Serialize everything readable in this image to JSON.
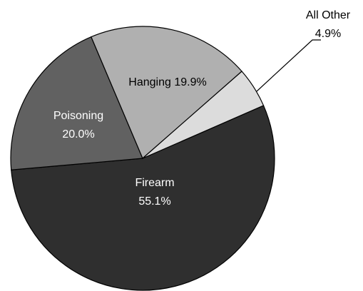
{
  "chart_data": {
    "type": "pie",
    "categories": [
      "Firearm",
      "Poisoning",
      "Hanging",
      "All Other"
    ],
    "values": [
      55.1,
      20.0,
      19.9,
      4.9
    ],
    "value_labels": [
      "55.1%",
      "20.0%",
      "19.9%",
      "4.9%"
    ],
    "colors": [
      "#2f2f2f",
      "#616161",
      "#b0b0b0",
      "#dcdcdc"
    ]
  }
}
